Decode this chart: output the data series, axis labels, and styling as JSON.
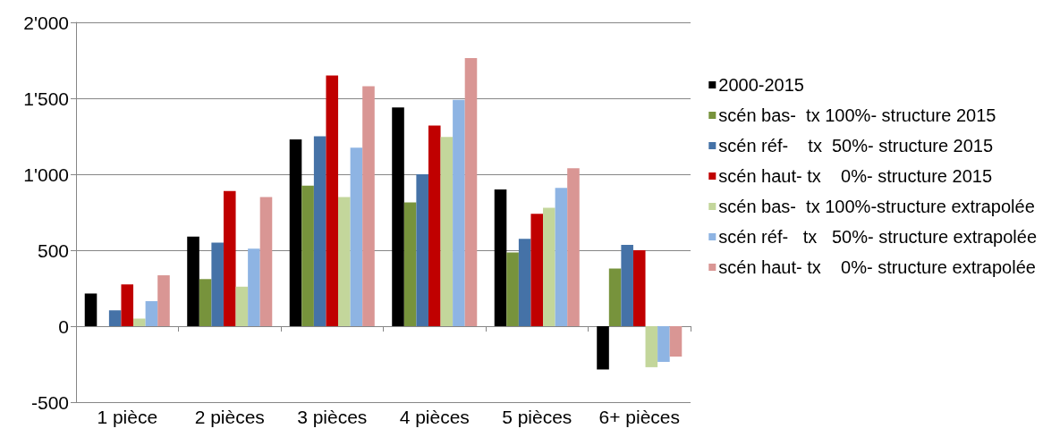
{
  "chart_data": {
    "type": "bar",
    "categories": [
      "1 pièce",
      "2 pièces",
      "3 pièces",
      "4 pièces",
      "5 pièces",
      "6+ pièces"
    ],
    "series": [
      {
        "name": "2000-2015",
        "color": "#000000",
        "values": [
          215,
          590,
          1230,
          1440,
          900,
          -285
        ]
      },
      {
        "name": "scén bas-  tx 100%- structure 2015",
        "color": "#77933c",
        "values": [
          null,
          310,
          925,
          815,
          485,
          380
        ]
      },
      {
        "name": "scén réf-    tx  50%- structure 2015",
        "color": "#4572a7",
        "values": [
          105,
          550,
          1250,
          1000,
          575,
          535
        ]
      },
      {
        "name": "scén haut- tx    0%- structure 2015",
        "color": "#c00000",
        "values": [
          275,
          890,
          1650,
          1320,
          740,
          500
        ]
      },
      {
        "name": "scén bas-  tx 100%-structure extrapolée",
        "color": "#c3d69b",
        "values": [
          50,
          260,
          850,
          1245,
          780,
          -270
        ]
      },
      {
        "name": "scén réf-   tx   50%- structure extrapolée",
        "color": "#8eb4e3",
        "values": [
          165,
          510,
          1175,
          1490,
          910,
          -235
        ]
      },
      {
        "name": "scén haut- tx    0%- structure extrapolée",
        "color": "#d99694",
        "values": [
          335,
          850,
          1580,
          1765,
          1040,
          -200
        ]
      }
    ],
    "ylim": [
      -500,
      2000
    ],
    "yticks": [
      -500,
      0,
      500,
      {
        "value": 1000,
        "label": "1'000"
      },
      {
        "value": 1500,
        "label": "1'500"
      },
      {
        "value": 2000,
        "label": "2'000"
      }
    ],
    "grid": "y",
    "legend": "right"
  }
}
